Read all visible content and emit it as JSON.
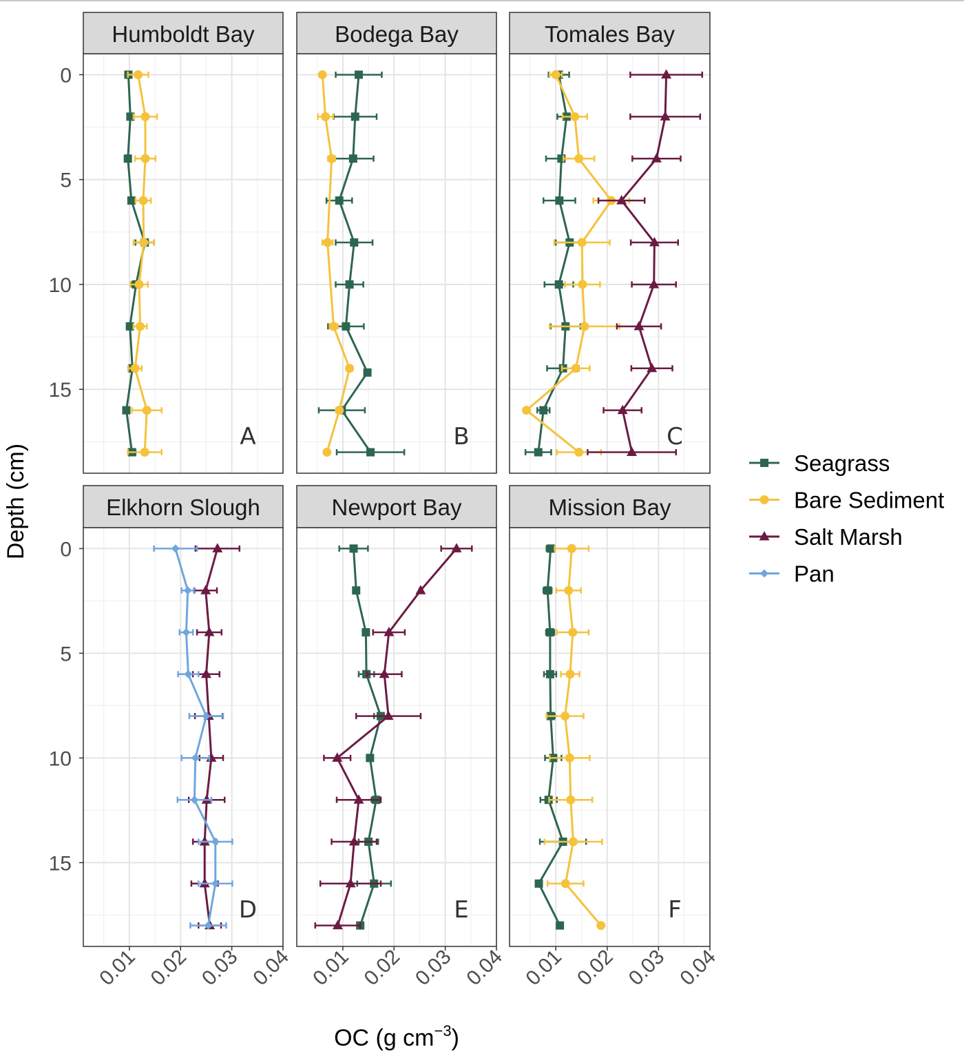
{
  "chart_data": {
    "type": "line",
    "x_label_main": "OC (g cm",
    "x_label_sup": "−3",
    "x_label_end": ")",
    "ylabel": "Depth (cm)",
    "xlim": [
      0.001,
      0.04
    ],
    "ylim": [
      19,
      -1
    ],
    "x_ticks": [
      0.01,
      0.02,
      0.03,
      0.04
    ],
    "x_tick_labels": [
      "0.01",
      "0.02",
      "0.03",
      "0.04"
    ],
    "y_ticks": [
      0,
      5,
      10,
      15
    ],
    "y_tick_labels": [
      "0",
      "5",
      "10",
      "15"
    ],
    "grid": true,
    "legend_position": "right",
    "legend": [
      {
        "name": "Seagrass",
        "color": "#2d6650",
        "marker": "square"
      },
      {
        "name": "Bare Sediment",
        "color": "#f5c23c",
        "marker": "circle"
      },
      {
        "name": "Salt Marsh",
        "color": "#6b1b43",
        "marker": "triangle"
      },
      {
        "name": "Pan",
        "color": "#6fa6de",
        "marker": "diamond"
      }
    ],
    "panels": [
      {
        "title": "Humboldt Bay",
        "letter": "A",
        "series": [
          {
            "name": "Seagrass",
            "points": [
              [
                0.0098,
                0,
                0.0006
              ],
              [
                0.0102,
                2,
                0.0006
              ],
              [
                0.0097,
                4,
                0.0006
              ],
              [
                0.0104,
                6,
                0.0005
              ],
              [
                0.013,
                8,
                0.0018
              ],
              [
                0.0113,
                10,
                0.0009
              ],
              [
                0.0101,
                12,
                0.0006
              ],
              [
                0.0106,
                14,
                0.0008
              ],
              [
                0.0094,
                16,
                0.0006
              ],
              [
                0.0105,
                18,
                0.0007
              ]
            ]
          },
          {
            "name": "Bare Sediment",
            "points": [
              [
                0.0117,
                0,
                0.002
              ],
              [
                0.0131,
                2,
                0.0023
              ],
              [
                0.0131,
                4,
                0.002
              ],
              [
                0.0127,
                6,
                0.0015
              ],
              [
                0.0128,
                8,
                0.002
              ],
              [
                0.0119,
                10,
                0.0017
              ],
              [
                0.0121,
                12,
                0.0013
              ],
              [
                0.0111,
                14,
                0.0013
              ],
              [
                0.0134,
                16,
                0.0029
              ],
              [
                0.013,
                18,
                0.0033
              ]
            ]
          }
        ]
      },
      {
        "title": "Bodega Bay",
        "letter": "B",
        "series": [
          {
            "name": "Seagrass",
            "points": [
              [
                0.0131,
                0,
                0.0045
              ],
              [
                0.0124,
                2,
                0.0042
              ],
              [
                0.012,
                4,
                0.004
              ],
              [
                0.0093,
                6,
                0.0025
              ],
              [
                0.0122,
                8,
                0.0036
              ],
              [
                0.0113,
                10,
                0.0027
              ],
              [
                0.0106,
                12,
                0.0035
              ],
              [
                0.0148,
                14.2,
                0.0006
              ],
              [
                0.0098,
                16,
                0.0045
              ],
              [
                0.0154,
                18,
                0.0066
              ]
            ]
          },
          {
            "name": "Bare Sediment",
            "points": [
              [
                0.006,
                0,
                0.0003
              ],
              [
                0.0066,
                2,
                0.0015
              ],
              [
                0.0078,
                4,
                0.0007
              ],
              [
                0.007,
                8,
                0.001
              ],
              [
                0.0082,
                12,
                0.0008
              ],
              [
                0.0113,
                14,
                0.0006
              ],
              [
                0.0093,
                16,
                0.0006
              ],
              [
                0.0069,
                18,
                0.0003
              ]
            ]
          }
        ]
      },
      {
        "title": "Tomales Bay",
        "letter": "C",
        "series": [
          {
            "name": "Seagrass",
            "points": [
              [
                0.0106,
                0,
                0.002
              ],
              [
                0.0121,
                2,
                0.0018
              ],
              [
                0.0111,
                4,
                0.003
              ],
              [
                0.0107,
                6,
                0.0031
              ],
              [
                0.0127,
                8,
                0.0027
              ],
              [
                0.0106,
                10,
                0.0028
              ],
              [
                0.0119,
                12,
                0.0029
              ],
              [
                0.0114,
                14,
                0.0031
              ],
              [
                0.0076,
                16,
                0.0012
              ],
              [
                0.0066,
                18,
                0.0025
              ]
            ]
          },
          {
            "name": "Bare Sediment",
            "points": [
              [
                0.01,
                0,
                0.0012
              ],
              [
                0.0137,
                2,
                0.0024
              ],
              [
                0.0145,
                4,
                0.003
              ],
              [
                0.0208,
                6,
                0.0035
              ],
              [
                0.0151,
                8,
                0.0054
              ],
              [
                0.0152,
                10,
                0.0034
              ],
              [
                0.0156,
                12,
                0.0068
              ],
              [
                0.0139,
                14,
                0.0027
              ],
              [
                0.0043,
                16,
                0.0003
              ],
              [
                0.0145,
                18,
                0.0043
              ]
            ]
          },
          {
            "name": "Salt Marsh",
            "points": [
              [
                0.0315,
                0,
                0.007
              ],
              [
                0.0313,
                2,
                0.0068
              ],
              [
                0.0296,
                4,
                0.0047
              ],
              [
                0.0228,
                6,
                0.0045
              ],
              [
                0.0292,
                8,
                0.0046
              ],
              [
                0.0291,
                10,
                0.0043
              ],
              [
                0.0262,
                12,
                0.0043
              ],
              [
                0.0287,
                14,
                0.004
              ],
              [
                0.023,
                16,
                0.0037
              ],
              [
                0.0248,
                18,
                0.0086
              ]
            ]
          }
        ]
      },
      {
        "title": "Elkhorn Slough",
        "letter": "D",
        "series": [
          {
            "name": "Salt Marsh",
            "points": [
              [
                0.0272,
                0,
                0.0043
              ],
              [
                0.0249,
                2,
                0.0022
              ],
              [
                0.0256,
                4,
                0.0024
              ],
              [
                0.025,
                6,
                0.0026
              ],
              [
                0.0255,
                8,
                0.0027
              ],
              [
                0.026,
                10,
                0.0023
              ],
              [
                0.0251,
                12,
                0.0035
              ],
              [
                0.0247,
                14,
                0.0023
              ],
              [
                0.0247,
                16,
                0.0026
              ],
              [
                0.0257,
                18,
                0.0022
              ]
            ]
          },
          {
            "name": "Pan",
            "points": [
              [
                0.019,
                0,
                0.0042
              ],
              [
                0.0214,
                2,
                0.0012
              ],
              [
                0.0211,
                4,
                0.0013
              ],
              [
                0.0215,
                6,
                0.002
              ],
              [
                0.025,
                8,
                0.0033
              ],
              [
                0.0229,
                10,
                0.0027
              ],
              [
                0.0227,
                12,
                0.0033
              ],
              [
                0.0268,
                14,
                0.0033
              ],
              [
                0.0268,
                16,
                0.0033
              ],
              [
                0.0254,
                18,
                0.0035
              ]
            ]
          }
        ]
      },
      {
        "title": "Newport Bay",
        "letter": "E",
        "series": [
          {
            "name": "Seagrass",
            "points": [
              [
                0.0121,
                0,
                0.0028
              ],
              [
                0.0126,
                2,
                0.0005
              ],
              [
                0.0145,
                4,
                0.0005
              ],
              [
                0.0146,
                6,
                0.0015
              ],
              [
                0.0174,
                8,
                0.0013
              ],
              [
                0.0153,
                10,
                0.0004
              ],
              [
                0.0165,
                12,
                0.0009
              ],
              [
                0.015,
                14,
                0.0019
              ],
              [
                0.0161,
                16,
                0.0033
              ],
              [
                0.0134,
                18,
                0.0005
              ]
            ]
          },
          {
            "name": "Salt Marsh",
            "points": [
              [
                0.0322,
                0,
                0.003
              ],
              [
                0.0252,
                2,
                0.0002
              ],
              [
                0.019,
                4,
                0.0031
              ],
              [
                0.0181,
                6,
                0.0034
              ],
              [
                0.0189,
                8,
                0.0063
              ],
              [
                0.0089,
                10,
                0.0026
              ],
              [
                0.0131,
                12,
                0.0043
              ],
              [
                0.0122,
                14,
                0.0044
              ],
              [
                0.0115,
                16,
                0.0059
              ],
              [
                0.009,
                18,
                0.0044
              ]
            ]
          }
        ]
      },
      {
        "title": "Mission Bay",
        "letter": "F",
        "series": [
          {
            "name": "Seagrass",
            "points": [
              [
                0.009,
                0,
                0.0008
              ],
              [
                0.0084,
                2,
                0.0008
              ],
              [
                0.0089,
                4,
                0.0008
              ],
              [
                0.0089,
                6,
                0.0012
              ],
              [
                0.009,
                8,
                0.0008
              ],
              [
                0.0095,
                10,
                0.0016
              ],
              [
                0.0086,
                12,
                0.0016
              ],
              [
                0.0114,
                14,
                0.0045
              ],
              [
                0.0067,
                16,
                0.0002
              ],
              [
                0.0108,
                18,
                0.0002
              ]
            ]
          },
          {
            "name": "Bare Sediment",
            "points": [
              [
                0.0131,
                0,
                0.0033
              ],
              [
                0.0125,
                2,
                0.0024
              ],
              [
                0.0133,
                4,
                0.0031
              ],
              [
                0.0128,
                6,
                0.0018
              ],
              [
                0.0118,
                8,
                0.0036
              ],
              [
                0.0127,
                10,
                0.0039
              ],
              [
                0.0129,
                12,
                0.0042
              ],
              [
                0.0134,
                14,
                0.0056
              ],
              [
                0.0119,
                16,
                0.0035
              ],
              [
                0.0188,
                18,
                0.0003
              ]
            ]
          }
        ]
      }
    ]
  }
}
